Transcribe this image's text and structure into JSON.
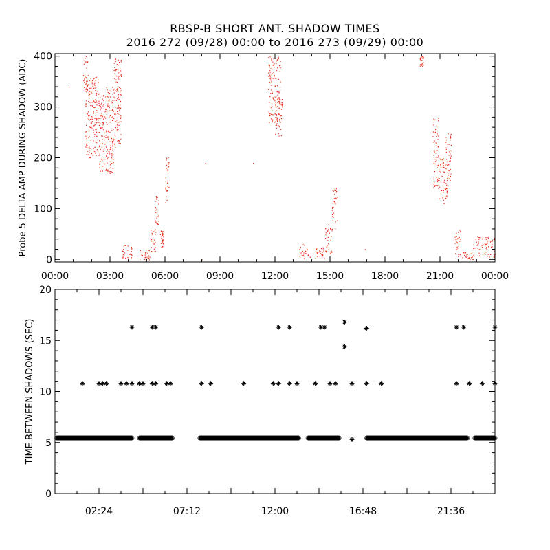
{
  "header": {
    "title": "RBSP-B SHORT ANT. SHADOW TIMES",
    "subtitle": "2016 272 (09/28) 00:00 to 2016 273 (09/29) 00:00"
  },
  "colors": {
    "series_top": "#e8301a",
    "series_bottom": "#000000",
    "axes": "#000000"
  },
  "chart_data": [
    {
      "type": "scatter",
      "title": "",
      "ylabel": "Probe 5 DELTA AMP DURING SHADOW (ADC)",
      "xlabel": "",
      "xlim_hours": [
        0,
        24
      ],
      "ylim": [
        -5,
        405
      ],
      "xtick_labels": [
        "00:00",
        "03:00",
        "06:00",
        "09:00",
        "12:00",
        "15:00",
        "18:00",
        "21:00",
        "00:00"
      ],
      "ytick_labels": [
        "0",
        "100",
        "200",
        "300",
        "400"
      ],
      "ytick_values": [
        0,
        100,
        200,
        300,
        400
      ],
      "marker": "dot",
      "clusters_hours_adc": [
        [
          1.5,
          1.8,
          330,
          400
        ],
        [
          1.65,
          2.4,
          200,
          360
        ],
        [
          2.4,
          3.2,
          170,
          340
        ],
        [
          3.2,
          3.6,
          220,
          400
        ],
        [
          3.65,
          4.2,
          2,
          30
        ],
        [
          4.6,
          5.2,
          0,
          20
        ],
        [
          5.2,
          5.5,
          15,
          60
        ],
        [
          5.45,
          5.65,
          65,
          125
        ],
        [
          5.7,
          5.9,
          25,
          60
        ],
        [
          6.0,
          6.2,
          110,
          210
        ],
        [
          11.6,
          12.3,
          270,
          400
        ],
        [
          12.0,
          12.4,
          240,
          320
        ],
        [
          13.3,
          13.8,
          2,
          30
        ],
        [
          14.2,
          14.7,
          0,
          25
        ],
        [
          14.7,
          15.1,
          10,
          70
        ],
        [
          15.1,
          15.4,
          60,
          140
        ],
        [
          19.9,
          20.1,
          380,
          400
        ],
        [
          20.6,
          20.9,
          140,
          280
        ],
        [
          20.9,
          21.4,
          110,
          200
        ],
        [
          21.3,
          21.6,
          150,
          250
        ],
        [
          21.8,
          22.1,
          5,
          60
        ],
        [
          22.2,
          22.8,
          0,
          15
        ],
        [
          22.8,
          24.0,
          5,
          45
        ]
      ],
      "isolated_points_hours_adc": [
        [
          0.75,
          340
        ],
        [
          8.0,
          0
        ],
        [
          8.2,
          190
        ],
        [
          10.8,
          190
        ],
        [
          13.9,
          5
        ],
        [
          16.9,
          20
        ]
      ]
    },
    {
      "type": "scatter",
      "title": "",
      "ylabel": "TIME BETWEEN SHADOWS (SEC)",
      "xlabel": "",
      "xlim_hours": [
        0,
        24
      ],
      "ylim": [
        0,
        20
      ],
      "xtick_labels": [
        "02:24",
        "07:12",
        "12:00",
        "16:48",
        "21:36"
      ],
      "xtick_hours": [
        2.4,
        7.2,
        12.0,
        16.8,
        21.6
      ],
      "ytick_labels": [
        "0",
        "5",
        "10",
        "15",
        "20"
      ],
      "ytick_values": [
        0,
        5,
        10,
        15,
        20
      ],
      "marker": "asterisk",
      "baseline_segments_sec": [
        [
          0.1,
          4.2,
          5.45
        ],
        [
          4.6,
          6.4,
          5.45
        ],
        [
          7.9,
          13.3,
          5.45
        ],
        [
          13.8,
          15.5,
          5.45
        ],
        [
          17.0,
          21.6,
          5.45
        ],
        [
          21.6,
          22.5,
          5.45
        ],
        [
          22.9,
          24.0,
          5.45
        ]
      ],
      "points_hours_sec": [
        [
          16.2,
          5.3
        ],
        [
          1.5,
          10.8
        ],
        [
          2.4,
          10.8
        ],
        [
          2.6,
          10.8
        ],
        [
          2.8,
          10.8
        ],
        [
          3.6,
          10.8
        ],
        [
          3.9,
          10.8
        ],
        [
          4.2,
          10.8
        ],
        [
          4.6,
          10.8
        ],
        [
          4.8,
          10.8
        ],
        [
          5.3,
          10.8
        ],
        [
          5.5,
          10.8
        ],
        [
          6.1,
          10.8
        ],
        [
          6.3,
          10.8
        ],
        [
          8.0,
          10.8
        ],
        [
          8.5,
          10.8
        ],
        [
          10.3,
          10.8
        ],
        [
          11.9,
          10.8
        ],
        [
          12.2,
          10.8
        ],
        [
          12.8,
          10.8
        ],
        [
          13.2,
          10.8
        ],
        [
          14.2,
          10.8
        ],
        [
          15.0,
          10.8
        ],
        [
          15.3,
          10.8
        ],
        [
          16.2,
          10.8
        ],
        [
          17.0,
          10.8
        ],
        [
          17.8,
          10.8
        ],
        [
          21.9,
          10.8
        ],
        [
          22.6,
          10.8
        ],
        [
          23.3,
          10.8
        ],
        [
          24.0,
          10.8
        ],
        [
          4.2,
          16.3
        ],
        [
          5.3,
          16.3
        ],
        [
          5.5,
          16.3
        ],
        [
          8.0,
          16.3
        ],
        [
          12.2,
          16.3
        ],
        [
          12.8,
          16.3
        ],
        [
          14.5,
          16.3
        ],
        [
          14.7,
          16.3
        ],
        [
          15.8,
          16.8
        ],
        [
          15.8,
          14.4
        ],
        [
          17.0,
          16.2
        ],
        [
          21.9,
          16.3
        ],
        [
          22.3,
          16.3
        ],
        [
          24.0,
          16.3
        ]
      ]
    }
  ]
}
